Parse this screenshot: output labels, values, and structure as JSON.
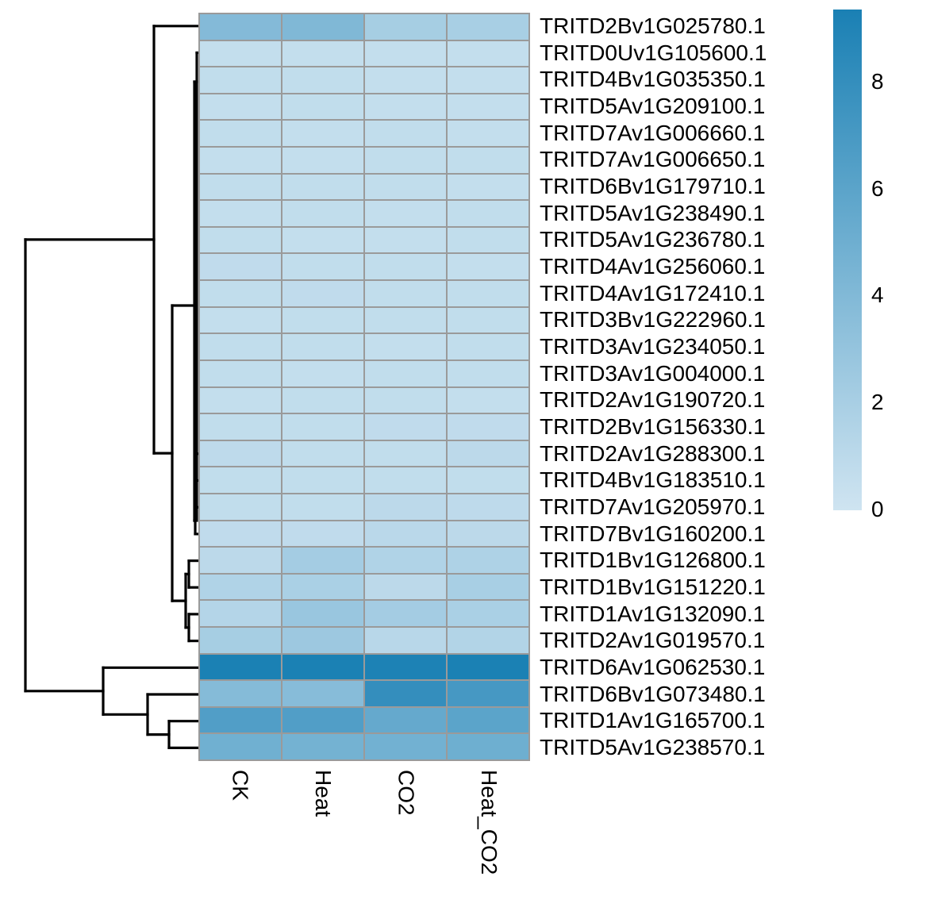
{
  "chart_data": {
    "type": "heatmap",
    "title": "",
    "columns": [
      "CK",
      "Heat",
      "CO2",
      "Heat_CO2"
    ],
    "rows": [
      "TRITD2Bv1G025780.1",
      "TRITD0Uv1G105600.1",
      "TRITD4Bv1G035350.1",
      "TRITD5Av1G209100.1",
      "TRITD7Av1G006660.1",
      "TRITD7Av1G006650.1",
      "TRITD6Bv1G179710.1",
      "TRITD5Av1G238490.1",
      "TRITD5Av1G236780.1",
      "TRITD4Av1G256060.1",
      "TRITD4Av1G172410.1",
      "TRITD3Bv1G222960.1",
      "TRITD3Av1G234050.1",
      "TRITD3Av1G004000.1",
      "TRITD2Av1G190720.1",
      "TRITD2Bv1G156330.1",
      "TRITD2Av1G288300.1",
      "TRITD4Bv1G183510.1",
      "TRITD7Av1G205970.1",
      "TRITD7Bv1G160200.1",
      "TRITD1Bv1G126800.1",
      "TRITD1Bv1G151220.1",
      "TRITD1Av1G132090.1",
      "TRITD2Av1G019570.1",
      "TRITD6Av1G062530.1",
      "TRITD6Bv1G073480.1",
      "TRITD1Av1G165700.1",
      "TRITD5Av1G238570.1"
    ],
    "values": [
      [
        3.9,
        4.1,
        2.1,
        2.0
      ],
      [
        0.6,
        0.6,
        0.6,
        0.6
      ],
      [
        0.7,
        0.7,
        0.6,
        0.6
      ],
      [
        0.6,
        0.7,
        0.6,
        0.6
      ],
      [
        0.7,
        0.6,
        0.7,
        0.6
      ],
      [
        0.6,
        0.6,
        0.7,
        0.7
      ],
      [
        0.7,
        0.7,
        0.7,
        0.6
      ],
      [
        0.6,
        0.7,
        0.6,
        0.7
      ],
      [
        0.7,
        0.6,
        0.6,
        0.7
      ],
      [
        0.8,
        0.7,
        0.7,
        0.6
      ],
      [
        0.7,
        0.8,
        0.7,
        0.7
      ],
      [
        0.6,
        0.7,
        0.7,
        0.7
      ],
      [
        0.7,
        0.7,
        0.6,
        0.7
      ],
      [
        0.7,
        0.6,
        0.7,
        0.7
      ],
      [
        0.6,
        0.7,
        0.7,
        0.6
      ],
      [
        0.7,
        0.7,
        0.8,
        0.8
      ],
      [
        0.9,
        0.7,
        0.7,
        1.0
      ],
      [
        0.7,
        0.7,
        0.7,
        0.7
      ],
      [
        0.7,
        0.7,
        1.0,
        0.9
      ],
      [
        0.8,
        0.8,
        1.1,
        1.0
      ],
      [
        1.0,
        2.2,
        1.6,
        1.7
      ],
      [
        1.6,
        1.9,
        1.0,
        2.0
      ],
      [
        1.4,
        2.8,
        2.2,
        1.9
      ],
      [
        2.1,
        2.6,
        1.2,
        1.5
      ],
      [
        9.3,
        9.3,
        9.2,
        9.3
      ],
      [
        3.8,
        3.7,
        8.0,
        7.1
      ],
      [
        6.5,
        6.5,
        5.5,
        6.0
      ],
      [
        4.9,
        4.7,
        4.8,
        5.0
      ]
    ],
    "colormap": {
      "low_color": "#cfe4f1",
      "high_color": "#1a80b4",
      "vmin": 0,
      "vmax": 9.35
    },
    "grid_color": "#9a9a9a",
    "legend": {
      "ticks": [
        8,
        6,
        4,
        2,
        0
      ],
      "position": "right"
    },
    "row_dendrogram": {
      "line_color": "#000000",
      "segments": [
        [
          32,
          301.9,
          32,
          870.8
        ],
        [
          32,
          301.9,
          194,
          301.9
        ],
        [
          32,
          870.8,
          130,
          870.8
        ],
        [
          194,
          32.8,
          194,
          571.1
        ],
        [
          194,
          32.8,
          250,
          32.8
        ],
        [
          194,
          571.1,
          217,
          571.1
        ],
        [
          217,
          385,
          217,
          757.1
        ],
        [
          217,
          385,
          245,
          385
        ],
        [
          217,
          757.1,
          234,
          757.1
        ],
        [
          245,
          103,
          245,
          656
        ],
        [
          245,
          103,
          248,
          103
        ],
        [
          245,
          656,
          246,
          656
        ],
        [
          248,
          66.5,
          248,
          656
        ],
        [
          248,
          66.5,
          250,
          66.5
        ],
        [
          246.5,
          571.8,
          246.5,
          605.5
        ],
        [
          246.5,
          571.8,
          250,
          571.8
        ],
        [
          246.5,
          605.5,
          250,
          605.5
        ],
        [
          246,
          639.2,
          246,
          672.9
        ],
        [
          246,
          639.2,
          250,
          639.2
        ],
        [
          246,
          672.9,
          250,
          672.9
        ],
        [
          234,
          723.4,
          234,
          790.8
        ],
        [
          234,
          723.4,
          238,
          723.4
        ],
        [
          234,
          790.8,
          238,
          790.8
        ],
        [
          238,
          706.6,
          238,
          740.2
        ],
        [
          238,
          706.6,
          250,
          706.6
        ],
        [
          238,
          740.2,
          250,
          740.2
        ],
        [
          238,
          773.9,
          238,
          807.6
        ],
        [
          238,
          773.9,
          250,
          773.9
        ],
        [
          238,
          807.6,
          250,
          807.6
        ],
        [
          130,
          841.3,
          130,
          900.3
        ],
        [
          130,
          841.3,
          250,
          841.3
        ],
        [
          130,
          900.3,
          186,
          900.3
        ],
        [
          186,
          875,
          186,
          925.6
        ],
        [
          186,
          875,
          250,
          875
        ],
        [
          186,
          925.6,
          213,
          925.6
        ],
        [
          213,
          908.7,
          213,
          942.4
        ],
        [
          213,
          908.7,
          250,
          908.7
        ],
        [
          213,
          942.4,
          250,
          942.4
        ]
      ]
    }
  }
}
